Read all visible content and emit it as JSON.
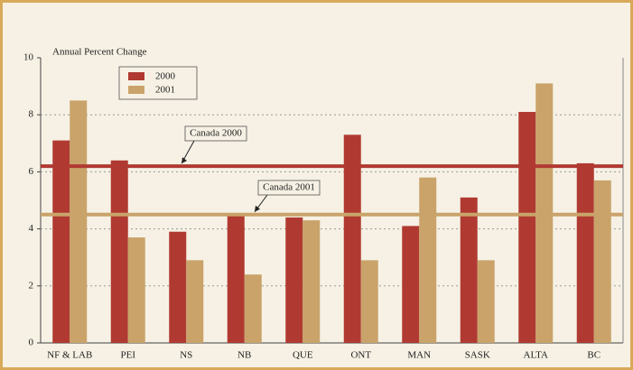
{
  "chart_data": {
    "type": "bar",
    "y_axis_label": "Annual Percent Change",
    "categories": [
      "NF & LAB",
      "PEI",
      "NS",
      "NB",
      "QUE",
      "ONT",
      "MAN",
      "SASK",
      "ALTA",
      "BC"
    ],
    "series": [
      {
        "name": "2000",
        "color": "#b03a32",
        "values": [
          7.1,
          6.4,
          3.9,
          4.5,
          4.4,
          7.3,
          4.1,
          5.1,
          8.1,
          6.3
        ]
      },
      {
        "name": "2001",
        "color": "#c9a36a",
        "values": [
          8.5,
          3.7,
          2.9,
          2.4,
          4.3,
          2.9,
          5.8,
          2.9,
          9.1,
          5.7
        ]
      }
    ],
    "reference_lines": [
      {
        "label": "Canada 2000",
        "value": 6.2,
        "color": "#b03a32"
      },
      {
        "label": "Canada 2001",
        "value": 4.5,
        "color": "#c9a36a"
      }
    ],
    "ylim": [
      0,
      10
    ],
    "yticks": [
      0,
      2,
      4,
      6,
      8,
      10
    ],
    "grid": true,
    "legend": "upper left"
  }
}
